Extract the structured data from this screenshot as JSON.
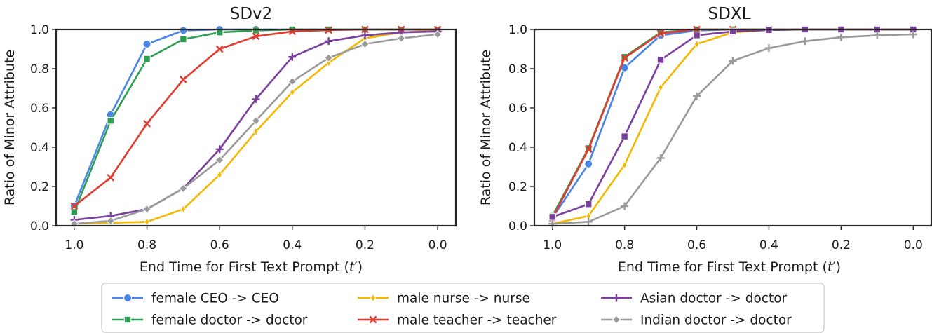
{
  "chart_data": {
    "type": "line",
    "x_axis_ticks": [
      1.0,
      0.8,
      0.6,
      0.4,
      0.2,
      0.0
    ],
    "y_axis_ticks": [
      0.0,
      0.2,
      0.4,
      0.6,
      0.8,
      1.0
    ],
    "xlim": [
      1.05,
      -0.05
    ],
    "ylim": [
      0.0,
      1.0
    ],
    "xlabel_text": "End Time for First Text Prompt (",
    "xlabel_var": "t",
    "xlabel_close": ")",
    "ylabel": "Ratio of Minor Attribute",
    "legend": {
      "placement": "bottom-center",
      "entries": [
        {
          "key": "ceo",
          "label": "female CEO -> CEO"
        },
        {
          "key": "fdoc",
          "label": "female doctor -> doctor"
        },
        {
          "key": "nurse",
          "label": "male nurse -> nurse"
        },
        {
          "key": "teacher",
          "label": "male teacher -> teacher"
        },
        {
          "key": "asian",
          "label": "Asian doctor -> doctor"
        },
        {
          "key": "indian",
          "label": "Indian doctor -> doctor"
        }
      ]
    },
    "panels": [
      {
        "title": "SDv2",
        "series": [
          {
            "key": "ceo",
            "name": "female CEO -> CEO",
            "color": "#4a86e8",
            "marker": "circle",
            "x": [
              1.0,
              0.9,
              0.8,
              0.7,
              0.6,
              0.5,
              0.4,
              0.3,
              0.2,
              0.1,
              0.0
            ],
            "y": [
              0.1,
              0.565,
              0.925,
              0.995,
              1.0,
              1.0,
              1.0,
              1.0,
              1.0,
              1.0,
              1.0
            ]
          },
          {
            "key": "fdoc",
            "name": "female doctor -> doctor",
            "color": "#2e9e52",
            "marker": "square",
            "x": [
              1.0,
              0.9,
              0.8,
              0.7,
              0.6,
              0.5,
              0.4,
              0.3,
              0.2,
              0.1,
              0.0
            ],
            "y": [
              0.07,
              0.535,
              0.85,
              0.95,
              0.985,
              0.995,
              1.0,
              1.0,
              1.0,
              1.0,
              1.0
            ]
          },
          {
            "key": "nurse",
            "name": "male nurse -> nurse",
            "color": "#f5b800",
            "marker": "thin_diamond",
            "x": [
              1.0,
              0.9,
              0.8,
              0.7,
              0.6,
              0.5,
              0.4,
              0.3,
              0.2,
              0.1,
              0.0
            ],
            "y": [
              0.01,
              0.015,
              0.02,
              0.085,
              0.26,
              0.48,
              0.68,
              0.83,
              0.955,
              0.985,
              0.995
            ]
          },
          {
            "key": "teacher",
            "name": "male teacher -> teacher",
            "color": "#e23b30",
            "marker": "x",
            "x": [
              1.0,
              0.9,
              0.8,
              0.7,
              0.6,
              0.5,
              0.4,
              0.3,
              0.2,
              0.1,
              0.0
            ],
            "y": [
              0.1,
              0.245,
              0.52,
              0.745,
              0.9,
              0.965,
              0.99,
              0.997,
              1.0,
              1.0,
              1.0
            ]
          },
          {
            "key": "asian",
            "name": "Asian doctor -> doctor",
            "color": "#7b3f9e",
            "marker": "plus",
            "x": [
              1.0,
              0.9,
              0.8,
              0.7,
              0.6,
              0.5,
              0.4,
              0.3,
              0.2,
              0.1,
              0.0
            ],
            "y": [
              0.03,
              0.05,
              0.085,
              0.19,
              0.39,
              0.645,
              0.86,
              0.94,
              0.97,
              0.985,
              0.99
            ]
          },
          {
            "key": "indian",
            "name": "Indian doctor -> doctor",
            "color": "#9a9a9a",
            "marker": "diamond",
            "x": [
              1.0,
              0.9,
              0.8,
              0.7,
              0.6,
              0.5,
              0.4,
              0.3,
              0.2,
              0.1,
              0.0
            ],
            "y": [
              0.01,
              0.025,
              0.085,
              0.19,
              0.335,
              0.535,
              0.735,
              0.855,
              0.925,
              0.955,
              0.975
            ]
          }
        ]
      },
      {
        "title": "SDXL",
        "series": [
          {
            "key": "ceo",
            "name": "female CEO -> CEO",
            "color": "#4a86e8",
            "marker": "circle",
            "x": [
              1.0,
              0.9,
              0.8,
              0.7,
              0.6,
              0.5,
              0.4,
              0.3,
              0.2,
              0.1,
              0.0
            ],
            "y": [
              0.04,
              0.315,
              0.805,
              0.97,
              0.995,
              1.0,
              1.0,
              1.0,
              1.0,
              1.0,
              1.0
            ]
          },
          {
            "key": "fdoc",
            "name": "female doctor -> doctor",
            "color": "#2e9e52",
            "marker": "square",
            "x": [
              1.0,
              0.9,
              0.8,
              0.7,
              0.6,
              0.5,
              0.4,
              0.3,
              0.2,
              0.1,
              0.0
            ],
            "y": [
              0.05,
              0.395,
              0.86,
              0.985,
              1.0,
              1.0,
              1.0,
              1.0,
              1.0,
              1.0,
              1.0
            ]
          },
          {
            "key": "nurse",
            "name": "male nurse -> nurse",
            "color": "#f5b800",
            "marker": "thin_diamond",
            "x": [
              1.0,
              0.9,
              0.8,
              0.7,
              0.6,
              0.5,
              0.4,
              0.3,
              0.2,
              0.1,
              0.0
            ],
            "y": [
              0.01,
              0.05,
              0.31,
              0.705,
              0.925,
              0.985,
              0.998,
              1.0,
              1.0,
              1.0,
              1.0
            ]
          },
          {
            "key": "teacher",
            "name": "male teacher -> teacher",
            "color": "#e23b30",
            "marker": "x",
            "x": [
              1.0,
              0.9,
              0.8,
              0.7,
              0.6,
              0.5,
              0.4,
              0.3,
              0.2,
              0.1,
              0.0
            ],
            "y": [
              0.04,
              0.39,
              0.855,
              0.98,
              1.0,
              1.0,
              1.0,
              1.0,
              1.0,
              1.0,
              1.0
            ]
          },
          {
            "key": "asian",
            "name": "Asian doctor -> doctor",
            "color": "#7b3f9e",
            "marker": "square",
            "x": [
              1.0,
              0.9,
              0.8,
              0.7,
              0.6,
              0.5,
              0.4,
              0.3,
              0.2,
              0.1,
              0.0
            ],
            "y": [
              0.045,
              0.11,
              0.455,
              0.845,
              0.97,
              0.99,
              0.997,
              1.0,
              1.0,
              1.0,
              1.0
            ]
          },
          {
            "key": "indian",
            "name": "Indian doctor -> doctor",
            "color": "#9a9a9a",
            "marker": "plus",
            "x": [
              1.0,
              0.9,
              0.8,
              0.7,
              0.6,
              0.5,
              0.4,
              0.3,
              0.2,
              0.1,
              0.0
            ],
            "y": [
              0.01,
              0.02,
              0.1,
              0.345,
              0.66,
              0.84,
              0.905,
              0.94,
              0.96,
              0.97,
              0.975
            ]
          }
        ]
      }
    ]
  }
}
